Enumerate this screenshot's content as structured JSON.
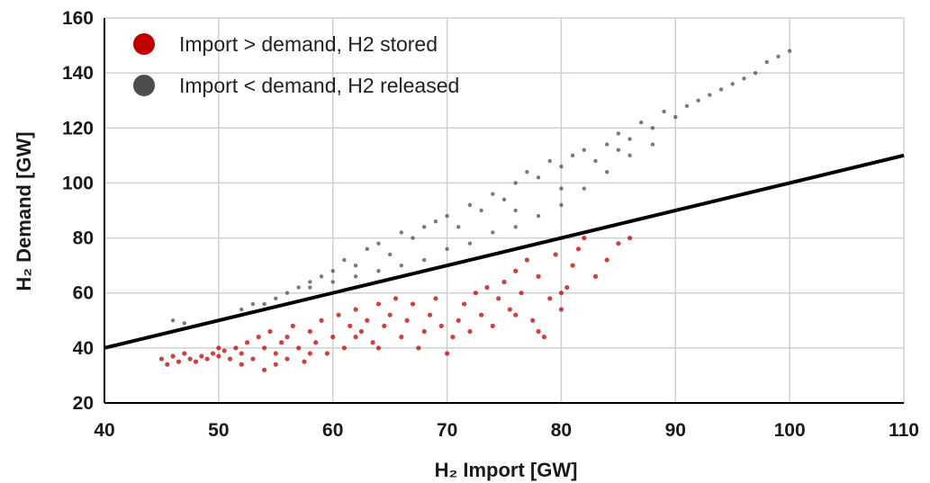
{
  "chart_data": {
    "type": "scatter",
    "title": "",
    "xlabel": "H₂ Import [GW]",
    "ylabel": "H₂ Demand [GW]",
    "xlim": [
      40,
      110
    ],
    "ylim": [
      20,
      160
    ],
    "xticks": [
      40,
      50,
      60,
      70,
      80,
      90,
      100,
      110
    ],
    "yticks": [
      20,
      40,
      60,
      80,
      100,
      120,
      140,
      160
    ],
    "grid": true,
    "legend_position": "top-left",
    "reference_line": {
      "x": [
        40,
        110
      ],
      "y": [
        40,
        110
      ],
      "color": "#000000"
    },
    "series": [
      {
        "name": "Import > demand, H2 stored",
        "color": "#c00000",
        "points": [
          [
            45,
            36
          ],
          [
            45.5,
            34
          ],
          [
            46,
            37
          ],
          [
            46.5,
            35
          ],
          [
            47,
            38
          ],
          [
            47.5,
            36
          ],
          [
            48,
            35
          ],
          [
            48.5,
            37
          ],
          [
            49,
            36
          ],
          [
            49.5,
            38
          ],
          [
            50,
            37
          ],
          [
            50.5,
            39
          ],
          [
            51,
            36
          ],
          [
            51.5,
            40
          ],
          [
            52,
            38
          ],
          [
            52.5,
            42
          ],
          [
            53,
            36
          ],
          [
            53.5,
            44
          ],
          [
            54,
            32
          ],
          [
            54,
            40
          ],
          [
            54.5,
            46
          ],
          [
            55,
            34
          ],
          [
            55,
            38
          ],
          [
            55.5,
            42
          ],
          [
            56,
            36
          ],
          [
            56,
            44
          ],
          [
            56.5,
            48
          ],
          [
            57,
            40
          ],
          [
            57.5,
            35
          ],
          [
            58,
            46
          ],
          [
            58.5,
            42
          ],
          [
            59,
            50
          ],
          [
            59.5,
            38
          ],
          [
            60,
            44
          ],
          [
            60.5,
            52
          ],
          [
            61,
            40
          ],
          [
            61.5,
            48
          ],
          [
            62,
            54
          ],
          [
            62.5,
            46
          ],
          [
            63,
            50
          ],
          [
            63.5,
            42
          ],
          [
            64,
            56
          ],
          [
            64.5,
            48
          ],
          [
            65,
            52
          ],
          [
            65.5,
            58
          ],
          [
            66,
            44
          ],
          [
            66.5,
            50
          ],
          [
            67,
            56
          ],
          [
            67.5,
            40
          ],
          [
            68,
            46
          ],
          [
            68.5,
            52
          ],
          [
            69,
            58
          ],
          [
            69.5,
            48
          ],
          [
            70,
            38
          ],
          [
            70.5,
            44
          ],
          [
            71,
            50
          ],
          [
            71.5,
            56
          ],
          [
            72,
            46
          ],
          [
            72.5,
            60
          ],
          [
            73,
            52
          ],
          [
            73.5,
            62
          ],
          [
            74,
            48
          ],
          [
            74.5,
            58
          ],
          [
            75,
            64
          ],
          [
            75.5,
            54
          ],
          [
            76,
            68
          ],
          [
            76.5,
            60
          ],
          [
            77,
            72
          ],
          [
            77.5,
            50
          ],
          [
            78,
            66
          ],
          [
            78.5,
            44
          ],
          [
            79,
            58
          ],
          [
            79.5,
            74
          ],
          [
            80,
            54
          ],
          [
            80.5,
            62
          ],
          [
            81,
            70
          ],
          [
            81.5,
            76
          ],
          [
            82,
            80
          ],
          [
            83,
            66
          ],
          [
            84,
            72
          ],
          [
            85,
            78
          ],
          [
            86,
            80
          ],
          [
            78,
            46
          ],
          [
            80,
            60
          ],
          [
            76,
            52
          ],
          [
            62,
            44
          ],
          [
            64,
            40
          ],
          [
            58,
            38
          ],
          [
            52,
            34
          ],
          [
            50,
            40
          ]
        ]
      },
      {
        "name": "Import < demand, H2 released",
        "color": "#4d4d4d",
        "points": [
          [
            46,
            50
          ],
          [
            47,
            49
          ],
          [
            52,
            54
          ],
          [
            53,
            56
          ],
          [
            55,
            58
          ],
          [
            57,
            62
          ],
          [
            58,
            64
          ],
          [
            59,
            66
          ],
          [
            60,
            68
          ],
          [
            61,
            72
          ],
          [
            62,
            70
          ],
          [
            63,
            76
          ],
          [
            64,
            78
          ],
          [
            65,
            74
          ],
          [
            66,
            82
          ],
          [
            67,
            80
          ],
          [
            68,
            84
          ],
          [
            69,
            86
          ],
          [
            70,
            88
          ],
          [
            71,
            84
          ],
          [
            72,
            92
          ],
          [
            73,
            90
          ],
          [
            74,
            96
          ],
          [
            75,
            94
          ],
          [
            76,
            100
          ],
          [
            77,
            104
          ],
          [
            78,
            102
          ],
          [
            79,
            108
          ],
          [
            80,
            106
          ],
          [
            81,
            110
          ],
          [
            82,
            112
          ],
          [
            83,
            108
          ],
          [
            84,
            114
          ],
          [
            85,
            118
          ],
          [
            86,
            116
          ],
          [
            87,
            122
          ],
          [
            88,
            120
          ],
          [
            89,
            126
          ],
          [
            90,
            124
          ],
          [
            91,
            128
          ],
          [
            92,
            130
          ],
          [
            93,
            132
          ],
          [
            94,
            134
          ],
          [
            95,
            136
          ],
          [
            96,
            138
          ],
          [
            97,
            140
          ],
          [
            98,
            144
          ],
          [
            99,
            146
          ],
          [
            100,
            148
          ],
          [
            84,
            104
          ],
          [
            86,
            110
          ],
          [
            88,
            114
          ],
          [
            82,
            98
          ],
          [
            80,
            92
          ],
          [
            78,
            88
          ],
          [
            76,
            84
          ],
          [
            74,
            82
          ],
          [
            72,
            78
          ],
          [
            70,
            76
          ],
          [
            68,
            72
          ],
          [
            66,
            70
          ],
          [
            64,
            68
          ],
          [
            62,
            66
          ],
          [
            60,
            64
          ],
          [
            58,
            62
          ],
          [
            56,
            60
          ],
          [
            54,
            56
          ],
          [
            76,
            90
          ],
          [
            80,
            98
          ],
          [
            85,
            112
          ]
        ]
      }
    ]
  }
}
